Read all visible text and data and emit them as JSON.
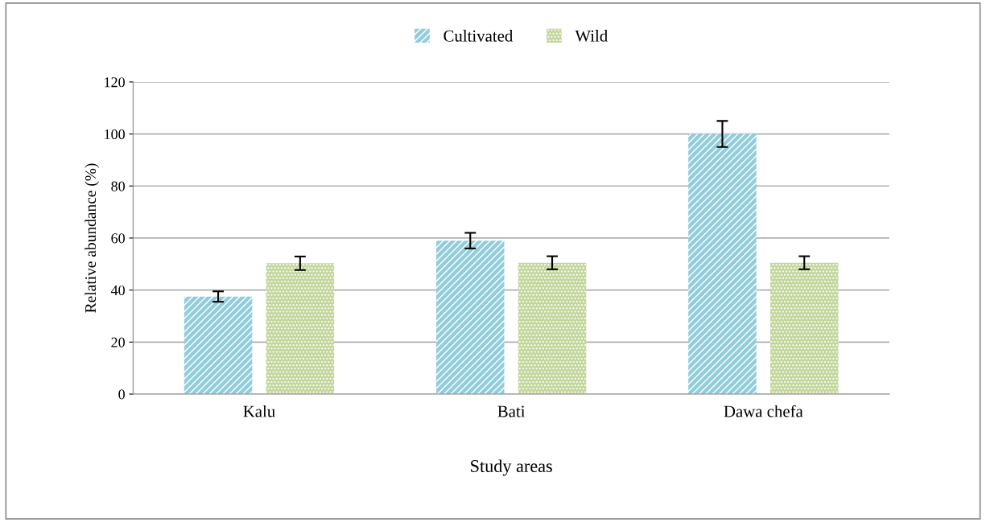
{
  "chart_data": {
    "type": "bar",
    "xlabel": "Study areas",
    "ylabel": "Relative abundance (%)",
    "categories": [
      "Kalu",
      "Bati",
      "Dawa chefa"
    ],
    "series": [
      {
        "name": "Cultivated",
        "color": "#92cddc",
        "values": [
          37.5,
          59,
          100
        ],
        "errors": [
          2,
          3,
          5
        ]
      },
      {
        "name": "Wild",
        "color": "#c3d69b",
        "values": [
          50.3,
          50.5,
          50.5
        ],
        "errors": [
          2.6,
          2.5,
          2.5
        ]
      }
    ],
    "ylim": [
      0,
      120
    ],
    "yticks": [
      0,
      20,
      40,
      60,
      80,
      100,
      120
    ],
    "grid": "y",
    "legend": "top"
  }
}
